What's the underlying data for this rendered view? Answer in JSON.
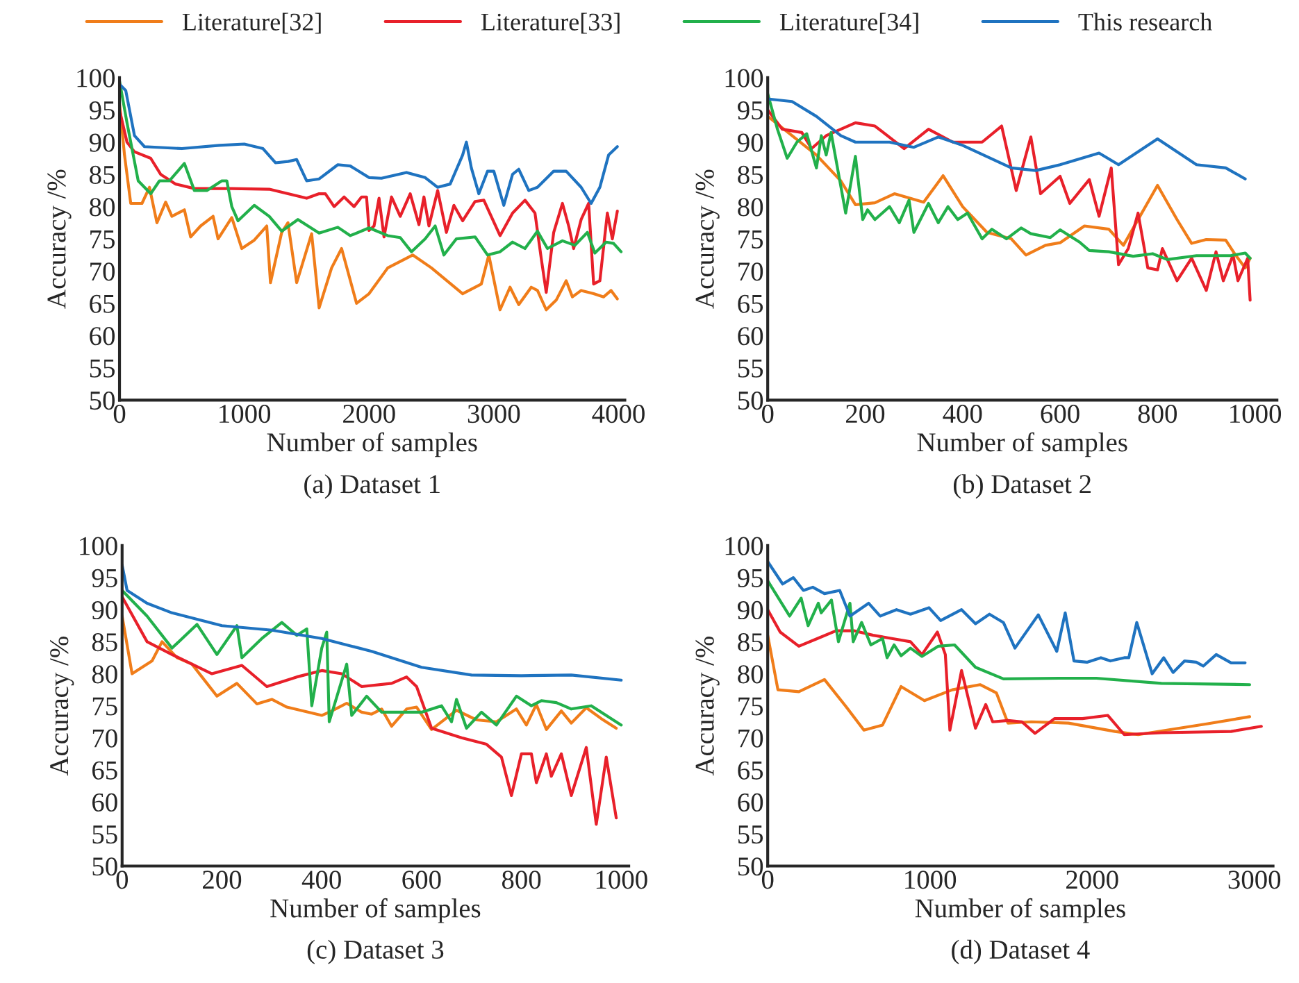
{
  "chart_data": [
    {
      "type": "line",
      "title": "(a) Dataset 1",
      "xlabel": "Number of samples",
      "ylabel": "Accuracy /%",
      "xlim": [
        0,
        4050
      ],
      "xticks": [
        0,
        1000,
        2000,
        3000,
        4000
      ],
      "ylim": [
        50,
        100
      ],
      "yticks": [
        50,
        55,
        60,
        65,
        70,
        75,
        80,
        85,
        90,
        95,
        100
      ],
      "grid": false,
      "legend": "top",
      "series": [
        {
          "name": "Literature[32]",
          "color": "#f07d1a",
          "x": [
            0,
            40,
            90,
            180,
            240,
            300,
            370,
            420,
            520,
            570,
            650,
            750,
            790,
            900,
            980,
            1080,
            1180,
            1210,
            1300,
            1350,
            1420,
            1540,
            1600,
            1700,
            1780,
            1900,
            2000,
            2150,
            2350,
            2500,
            2750,
            2900,
            2960,
            3050,
            3130,
            3200,
            3300,
            3350,
            3420,
            3500,
            3580,
            3630,
            3700,
            3800,
            3880,
            3940,
            3990
          ],
          "values": [
            96,
            88,
            80.5,
            80.5,
            83,
            77.5,
            80.7,
            78.5,
            79.5,
            75.3,
            77,
            78.5,
            75,
            78.3,
            73.5,
            74.8,
            77,
            68.2,
            76,
            77.5,
            68.2,
            75.8,
            64.3,
            70.5,
            73.5,
            65,
            66.5,
            70.5,
            72.5,
            70.5,
            66.5,
            68,
            72.5,
            64,
            67.5,
            64.8,
            67.5,
            67,
            64,
            65.5,
            68.5,
            66,
            67,
            66.5,
            66,
            67,
            65.7
          ]
        },
        {
          "name": "Literature[33]",
          "color": "#e8202a",
          "x": [
            0,
            60,
            120,
            250,
            330,
            450,
            600,
            900,
            1200,
            1500,
            1600,
            1650,
            1720,
            1800,
            1880,
            1940,
            1980,
            2000,
            2040,
            2080,
            2120,
            2180,
            2250,
            2330,
            2400,
            2440,
            2480,
            2550,
            2620,
            2680,
            2750,
            2850,
            2920,
            3050,
            3150,
            3250,
            3330,
            3380,
            3420,
            3480,
            3550,
            3600,
            3640,
            3700,
            3760,
            3800,
            3850,
            3910,
            3950,
            3990
          ],
          "values": [
            95,
            90,
            88.5,
            87.5,
            85,
            83.5,
            82.8,
            82.8,
            82.7,
            81.3,
            82,
            82,
            80,
            81.5,
            80,
            81.5,
            81.5,
            76.3,
            77,
            81.3,
            75.3,
            81.5,
            78.5,
            82,
            77.2,
            81.5,
            77,
            82.5,
            76,
            80.2,
            77.8,
            80.8,
            81,
            75.5,
            79,
            81,
            79,
            72,
            66.7,
            76,
            80.5,
            77,
            73.5,
            78,
            80.5,
            68,
            68.5,
            79,
            75,
            79.3
          ]
        },
        {
          "name": "Literature[34]",
          "color": "#22b04b",
          "x": [
            0,
            60,
            150,
            250,
            320,
            400,
            520,
            600,
            700,
            820,
            860,
            900,
            950,
            1080,
            1200,
            1300,
            1430,
            1600,
            1750,
            1850,
            2000,
            2150,
            2250,
            2340,
            2450,
            2530,
            2600,
            2700,
            2850,
            2950,
            3050,
            3150,
            3250,
            3350,
            3430,
            3550,
            3650,
            3750,
            3810,
            3900,
            3960,
            4020
          ],
          "values": [
            99.5,
            93,
            84,
            82,
            84,
            84,
            86.7,
            82.5,
            82.5,
            84,
            84,
            80,
            77.8,
            80.2,
            78.5,
            76.2,
            78,
            75.9,
            76.8,
            75.5,
            76.7,
            75.5,
            75.2,
            73,
            75,
            77,
            72.5,
            75,
            75.3,
            72.5,
            73,
            74.5,
            73.5,
            76.2,
            73.5,
            74.7,
            74,
            76,
            72.8,
            74.5,
            74.3,
            73
          ]
        },
        {
          "name": "This research",
          "color": "#1f73c0",
          "x": [
            0,
            50,
            120,
            200,
            500,
            800,
            1000,
            1150,
            1250,
            1350,
            1420,
            1500,
            1600,
            1750,
            1850,
            2000,
            2100,
            2300,
            2450,
            2550,
            2650,
            2750,
            2780,
            2820,
            2880,
            2950,
            3000,
            3080,
            3150,
            3200,
            3280,
            3350,
            3480,
            3580,
            3700,
            3780,
            3850,
            3920,
            3990
          ],
          "values": [
            99,
            98,
            91,
            89.3,
            89,
            89.5,
            89.7,
            89,
            86.8,
            87,
            87.3,
            84,
            84.3,
            86.5,
            86.3,
            84.5,
            84.4,
            85.3,
            84.5,
            83,
            83.5,
            88,
            90,
            86,
            82,
            85.5,
            85.5,
            80.2,
            85,
            85.8,
            82.5,
            83,
            85.5,
            85.5,
            83,
            80.5,
            83,
            88,
            89.3
          ]
        }
      ]
    },
    {
      "type": "line",
      "title": "(b) Dataset 2",
      "xlabel": "Number of samples",
      "ylabel": "Accuracy /%",
      "xlim": [
        0,
        1045
      ],
      "xticks": [
        0,
        200,
        400,
        600,
        800,
        1000
      ],
      "ylim": [
        50,
        100
      ],
      "yticks": [
        50,
        55,
        60,
        65,
        70,
        75,
        80,
        85,
        90,
        95,
        100
      ],
      "grid": false,
      "series": [
        {
          "color": "#f07d1a",
          "x": [
            0,
            50,
            100,
            150,
            180,
            220,
            260,
            320,
            360,
            400,
            450,
            500,
            530,
            570,
            600,
            650,
            700,
            730,
            800,
            840,
            870,
            900,
            940,
            960,
            980,
            990
          ],
          "values": [
            94,
            91,
            88,
            84,
            80.3,
            80.6,
            82,
            80.7,
            84.8,
            80,
            76,
            75,
            72.5,
            74,
            74.4,
            77,
            76.5,
            74,
            83.3,
            78,
            74.3,
            74.9,
            74.8,
            72.5,
            70.5,
            72
          ]
        },
        {
          "color": "#e8202a",
          "x": [
            0,
            30,
            70,
            90,
            120,
            180,
            220,
            280,
            330,
            380,
            440,
            480,
            510,
            540,
            560,
            600,
            620,
            660,
            680,
            705,
            720,
            740,
            760,
            780,
            800,
            810,
            840,
            870,
            900,
            920,
            935,
            955,
            965,
            985,
            990
          ],
          "values": [
            95,
            92,
            91.5,
            89,
            91,
            93,
            92.5,
            89,
            92,
            90,
            90,
            92.5,
            82.5,
            90.8,
            82,
            84.7,
            80.5,
            84.2,
            78.5,
            86,
            71,
            73.5,
            79,
            70.5,
            70.2,
            73.5,
            68.5,
            72,
            67,
            73,
            68.5,
            72.5,
            68.5,
            72,
            65.5
          ]
        },
        {
          "color": "#22b04b",
          "x": [
            0,
            20,
            40,
            60,
            80,
            100,
            110,
            120,
            130,
            160,
            180,
            195,
            205,
            220,
            250,
            270,
            290,
            300,
            330,
            350,
            370,
            390,
            410,
            440,
            460,
            490,
            520,
            540,
            580,
            600,
            640,
            660,
            700,
            750,
            790,
            820,
            880,
            950,
            980,
            990
          ],
          "values": [
            97.5,
            92,
            87.5,
            90,
            91.3,
            86,
            91,
            88,
            91.5,
            79,
            87.8,
            78,
            79.5,
            78,
            80,
            77.5,
            81,
            76,
            80.5,
            77.5,
            80,
            78,
            79,
            75,
            76.5,
            75,
            76.7,
            75.8,
            75.2,
            76.4,
            74.5,
            73.2,
            73,
            72.3,
            72.7,
            71.8,
            72.4,
            72.4,
            72.8,
            72
          ]
        },
        {
          "color": "#1f73c0",
          "x": [
            0,
            50,
            100,
            150,
            180,
            250,
            300,
            350,
            400,
            500,
            550,
            600,
            680,
            720,
            800,
            880,
            940,
            980
          ],
          "values": [
            96.7,
            96.3,
            94,
            91,
            90,
            90,
            89.2,
            90.8,
            89.5,
            86,
            85.6,
            86.5,
            88.3,
            86.5,
            90.5,
            86.5,
            86,
            84.3
          ]
        }
      ]
    },
    {
      "type": "line",
      "title": "(c) Dataset 3",
      "xlabel": "Number of samples",
      "ylabel": "Accuracy /%",
      "xlim": [
        0,
        1015
      ],
      "xticks": [
        0,
        200,
        400,
        600,
        800,
        1000
      ],
      "ylim": [
        50,
        100
      ],
      "yticks": [
        50,
        55,
        60,
        65,
        70,
        75,
        80,
        85,
        90,
        95,
        100
      ],
      "grid": false,
      "series": [
        {
          "color": "#f07d1a",
          "x": [
            0,
            20,
            60,
            80,
            110,
            140,
            160,
            190,
            230,
            270,
            300,
            330,
            400,
            420,
            450,
            480,
            500,
            520,
            540,
            570,
            590,
            620,
            670,
            710,
            750,
            790,
            810,
            830,
            850,
            880,
            900,
            930,
            960,
            990
          ],
          "values": [
            89,
            80,
            82,
            85,
            82.5,
            81.5,
            79.5,
            76.5,
            78.5,
            75.3,
            76,
            74.8,
            73.5,
            74.2,
            75.4,
            74,
            73.7,
            74.5,
            71.8,
            74.5,
            74.8,
            71.3,
            74.3,
            72.8,
            72.5,
            74.5,
            72,
            75.2,
            71.3,
            74.2,
            72.3,
            74.7,
            73,
            71.5
          ]
        },
        {
          "color": "#e8202a",
          "x": [
            0,
            50,
            100,
            180,
            240,
            290,
            350,
            400,
            440,
            480,
            540,
            570,
            590,
            620,
            680,
            730,
            760,
            780,
            800,
            820,
            830,
            850,
            860,
            880,
            900,
            930,
            950,
            970,
            990
          ],
          "values": [
            92,
            85,
            83,
            80,
            81.3,
            78,
            79.5,
            80.5,
            80,
            78,
            78.5,
            79.5,
            78,
            71.5,
            70,
            69,
            67,
            61,
            67.5,
            67.5,
            63,
            67.5,
            64,
            67.5,
            61,
            68.5,
            56.5,
            67,
            57.5
          ]
        },
        {
          "color": "#22b04b",
          "x": [
            0,
            50,
            100,
            150,
            190,
            230,
            240,
            280,
            320,
            350,
            370,
            380,
            400,
            410,
            415,
            450,
            460,
            490,
            520,
            600,
            640,
            660,
            670,
            690,
            720,
            750,
            790,
            820,
            840,
            870,
            900,
            940,
            980,
            1000
          ],
          "values": [
            93,
            89,
            84,
            87.7,
            83,
            87.5,
            82.5,
            85.5,
            88,
            86,
            87,
            75,
            84,
            86.5,
            72.5,
            81.5,
            73.5,
            76.5,
            74,
            74,
            75,
            72.5,
            76,
            71.5,
            74,
            72,
            76.5,
            75,
            75.8,
            75.5,
            74.5,
            75,
            73,
            72
          ]
        },
        {
          "color": "#1f73c0",
          "x": [
            0,
            10,
            50,
            100,
            200,
            300,
            400,
            500,
            600,
            700,
            800,
            900,
            1000
          ],
          "values": [
            97,
            93,
            91,
            89.5,
            87.5,
            86.8,
            85.5,
            83.5,
            81,
            79.8,
            79.7,
            79.8,
            79
          ]
        }
      ]
    },
    {
      "type": "line",
      "title": "(d) Dataset 4",
      "xlabel": "Number of samples",
      "ylabel": "Accuracy /%",
      "xlim": [
        0,
        3115
      ],
      "xticks": [
        0,
        1000,
        2000,
        3000
      ],
      "ylim": [
        50,
        100
      ],
      "yticks": [
        50,
        55,
        60,
        65,
        70,
        75,
        80,
        85,
        90,
        95,
        100
      ],
      "grid": false,
      "series": [
        {
          "color": "#f07d1a",
          "x": [
            0,
            63,
            192,
            350,
            479,
            593,
            708,
            822,
            966,
            1138,
            1309,
            1410,
            1481,
            1625,
            1854,
            2140,
            2284,
            2713,
            2971
          ],
          "values": [
            86,
            77.5,
            77.2,
            79.1,
            75,
            71.2,
            72,
            78,
            75.8,
            77.5,
            78.3,
            77,
            72.3,
            72.5,
            72.3,
            71,
            70.5,
            72.2,
            73.3
          ]
        },
        {
          "color": "#e8202a",
          "x": [
            0,
            77,
            192,
            307,
            421,
            536,
            650,
            765,
            880,
            951,
            1046,
            1095,
            1123,
            1195,
            1281,
            1344,
            1387,
            1481,
            1567,
            1648,
            1768,
            1940,
            2097,
            2198,
            2427,
            2857,
            3043
          ],
          "values": [
            90,
            86.5,
            84.3,
            85.5,
            86.7,
            86.7,
            86,
            85.5,
            85,
            83,
            86.5,
            83,
            71.2,
            80.5,
            71.5,
            75.2,
            72.5,
            72.7,
            72.5,
            70.7,
            73,
            73,
            73.5,
            70.5,
            70.8,
            71,
            71.8
          ]
        },
        {
          "color": "#22b04b",
          "x": [
            0,
            135,
            206,
            249,
            312,
            330,
            393,
            436,
            507,
            527,
            579,
            636,
            708,
            736,
            779,
            822,
            880,
            951,
            1052,
            1152,
            1281,
            1453,
            1797,
            2026,
            2427,
            2971
          ],
          "values": [
            94.5,
            89,
            91.8,
            87.5,
            91,
            89.5,
            91.5,
            85,
            91,
            85,
            88,
            84.5,
            85.5,
            82.5,
            84.5,
            82.8,
            84,
            82.7,
            84.3,
            84.5,
            81,
            79.2,
            79.3,
            79.3,
            78.5,
            78.3
          ]
        },
        {
          "color": "#1f73c0",
          "x": [
            0,
            92,
            158,
            220,
            278,
            350,
            444,
            507,
            622,
            693,
            794,
            880,
            994,
            1066,
            1195,
            1281,
            1367,
            1453,
            1524,
            1668,
            1782,
            1834,
            1888,
            1968,
            2054,
            2112,
            2198,
            2226,
            2275,
            2370,
            2441,
            2499,
            2570,
            2642,
            2685,
            2765,
            2857,
            2943
          ],
          "values": [
            97.5,
            94,
            95,
            93,
            93.5,
            92.5,
            93,
            89,
            91,
            89,
            90,
            89.3,
            90.3,
            88.3,
            90,
            87.8,
            89.3,
            88,
            84,
            89.2,
            83.5,
            89.5,
            82,
            81.8,
            82.5,
            82,
            82.5,
            82.5,
            88,
            80,
            82.5,
            80.2,
            82,
            81.8,
            81.2,
            83,
            81.7,
            81.7
          ]
        }
      ]
    }
  ]
}
